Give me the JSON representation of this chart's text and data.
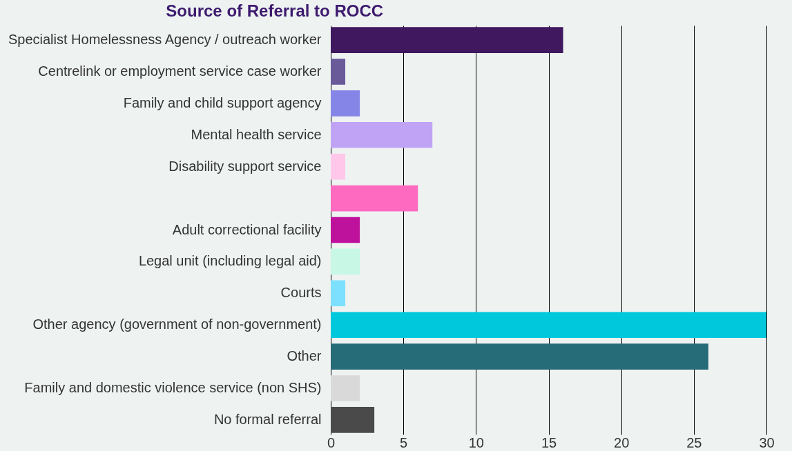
{
  "chart_data": {
    "type": "bar",
    "orientation": "horizontal",
    "title": "Source of Referral to ROCC",
    "categories": [
      "Specialist Homelessness Agency / outreach worker",
      "Centrelink or employment service case worker",
      "Family and child support agency",
      "Mental health service",
      "Disability support service",
      null,
      "Adult correctional facility",
      "Legal unit (including legal aid)",
      "Courts",
      "Other agency (government of non-government)",
      "Other",
      "Family and domestic violence service (non SHS)",
      "No formal referral"
    ],
    "values": [
      16,
      1,
      2,
      7,
      1,
      6,
      2,
      2,
      1,
      30,
      26,
      2,
      3
    ],
    "colors": [
      "#3f1860",
      "#6a5a9a",
      "#8585e8",
      "#c1a3f5",
      "#ffc8ea",
      "#ff6ac1",
      "#be129c",
      "#c8f7e6",
      "#7ee0ff",
      "#00c8dc",
      "#266b78",
      "#d9d9d9",
      "#4a4a4a"
    ],
    "xlim": [
      0,
      30
    ],
    "xticks": [
      0,
      5,
      10,
      15,
      20,
      25,
      30
    ],
    "grid": "x"
  }
}
